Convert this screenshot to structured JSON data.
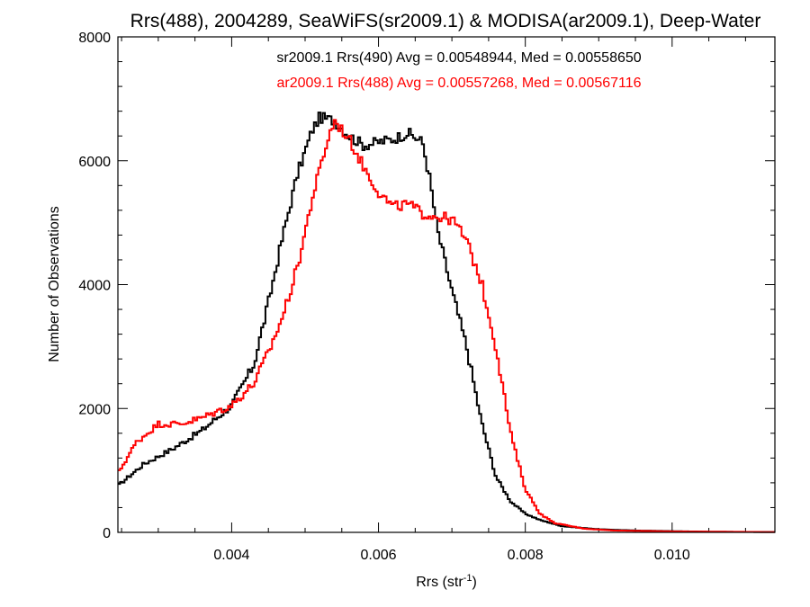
{
  "chart_data": {
    "type": "line",
    "step": true,
    "title": "Rrs(488), 2004289, SeaWiFS(sr2009.1) & MODISA(ar2009.1), Deep-Water",
    "xlabel_base": "Rrs (str",
    "xlabel_sup": "-1",
    "xlabel_end": ")",
    "ylabel": "Number of Observations",
    "xlim": [
      0.00245,
      0.0114
    ],
    "ylim": [
      0,
      8000
    ],
    "x_ticks": [
      0.004,
      0.006,
      0.008,
      0.01
    ],
    "x_tick_labels": [
      "0.004",
      "0.006",
      "0.008",
      "0.010"
    ],
    "y_ticks": [
      0,
      2000,
      4000,
      6000,
      8000
    ],
    "y_tick_labels": [
      "0",
      "2000",
      "4000",
      "6000",
      "8000"
    ],
    "grid": false,
    "annotations": [
      {
        "text": "sr2009.1 Rrs(490) Avg = 0.00548944, Med = 0.00558650",
        "color": "#000000"
      },
      {
        "text": "ar2009.1 Rrs(488) Avg = 0.00557268, Med = 0.00567116",
        "color": "#ff0000"
      }
    ],
    "series": [
      {
        "color": "#000000",
        "points": [
          [
            0.00245,
            750
          ],
          [
            0.0028,
            1100
          ],
          [
            0.0032,
            1350
          ],
          [
            0.0036,
            1650
          ],
          [
            0.004,
            2050
          ],
          [
            0.0043,
            2700
          ],
          [
            0.0045,
            3700
          ],
          [
            0.0047,
            4800
          ],
          [
            0.0049,
            5800
          ],
          [
            0.0051,
            6500
          ],
          [
            0.0052,
            6700
          ],
          [
            0.0054,
            6650
          ],
          [
            0.0056,
            6400
          ],
          [
            0.0058,
            6250
          ],
          [
            0.006,
            6300
          ],
          [
            0.0062,
            6350
          ],
          [
            0.0064,
            6450
          ],
          [
            0.0066,
            6300
          ],
          [
            0.0067,
            5700
          ],
          [
            0.0068,
            4900
          ],
          [
            0.007,
            3900
          ],
          [
            0.0072,
            3000
          ],
          [
            0.0074,
            1800
          ],
          [
            0.0076,
            900
          ],
          [
            0.0078,
            500
          ],
          [
            0.008,
            300
          ],
          [
            0.0082,
            200
          ],
          [
            0.0085,
            100
          ],
          [
            0.009,
            50
          ],
          [
            0.0095,
            30
          ],
          [
            0.01,
            20
          ],
          [
            0.0105,
            10
          ],
          [
            0.0114,
            5
          ]
        ]
      },
      {
        "color": "#ff0000",
        "points": [
          [
            0.00245,
            950
          ],
          [
            0.0027,
            1450
          ],
          [
            0.003,
            1750
          ],
          [
            0.0033,
            1750
          ],
          [
            0.0036,
            1850
          ],
          [
            0.004,
            2050
          ],
          [
            0.0043,
            2400
          ],
          [
            0.0045,
            2900
          ],
          [
            0.0047,
            3500
          ],
          [
            0.0049,
            4300
          ],
          [
            0.0051,
            5400
          ],
          [
            0.0053,
            6300
          ],
          [
            0.0054,
            6650
          ],
          [
            0.0056,
            6350
          ],
          [
            0.0058,
            5900
          ],
          [
            0.006,
            5500
          ],
          [
            0.0062,
            5250
          ],
          [
            0.0064,
            5300
          ],
          [
            0.0066,
            5150
          ],
          [
            0.0068,
            5100
          ],
          [
            0.007,
            5050
          ],
          [
            0.0071,
            4900
          ],
          [
            0.0072,
            4700
          ],
          [
            0.0074,
            4050
          ],
          [
            0.0076,
            3000
          ],
          [
            0.0078,
            1600
          ],
          [
            0.008,
            700
          ],
          [
            0.0082,
            300
          ],
          [
            0.0084,
            150
          ],
          [
            0.0088,
            60
          ],
          [
            0.0092,
            30
          ],
          [
            0.01,
            15
          ],
          [
            0.0114,
            5
          ]
        ]
      }
    ]
  }
}
